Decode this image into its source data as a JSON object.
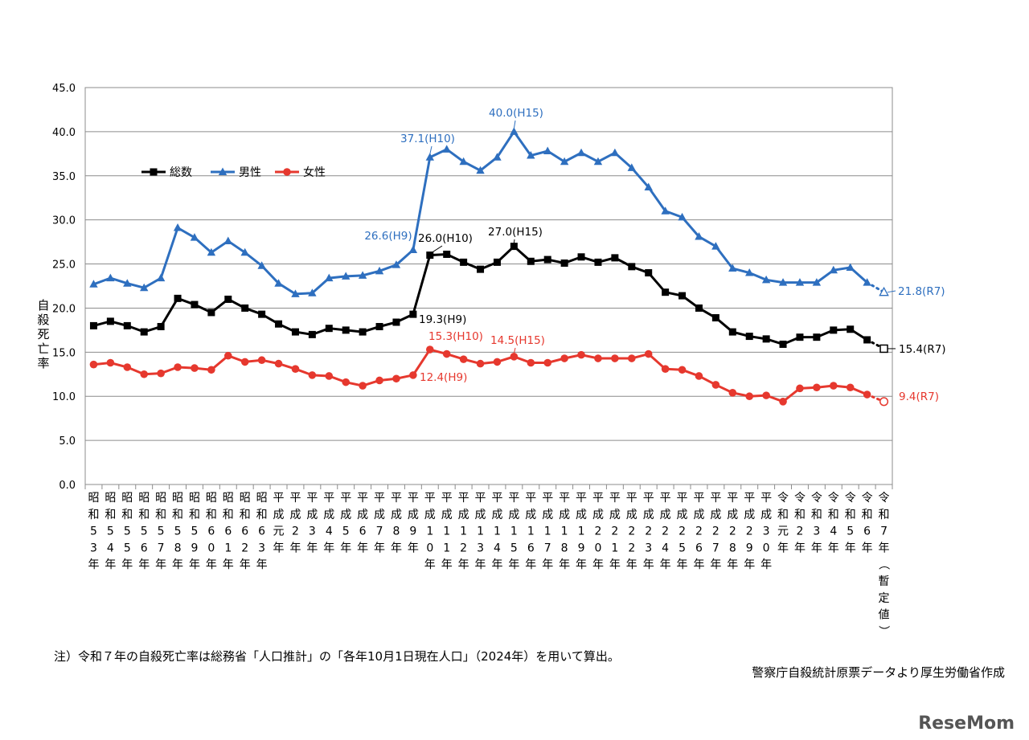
{
  "chart_data": {
    "type": "line",
    "ylabel": "自殺死亡率",
    "ylim": [
      0,
      45
    ],
    "yticks": [
      "0.0",
      "5.0",
      "10.0",
      "15.0",
      "20.0",
      "25.0",
      "30.0",
      "35.0",
      "40.0",
      "45.0"
    ],
    "grid": true,
    "legend_position": "top-left",
    "categories": [
      "昭和53年",
      "昭和54年",
      "昭和55年",
      "昭和56年",
      "昭和57年",
      "昭和58年",
      "昭和59年",
      "昭和60年",
      "昭和61年",
      "昭和62年",
      "昭和63年",
      "平成元年",
      "平成2年",
      "平成3年",
      "平成4年",
      "平成5年",
      "平成6年",
      "平成7年",
      "平成8年",
      "平成9年",
      "平成10年",
      "平成11年",
      "平成12年",
      "平成13年",
      "平成14年",
      "平成15年",
      "平成16年",
      "平成17年",
      "平成18年",
      "平成19年",
      "平成20年",
      "平成21年",
      "平成22年",
      "平成23年",
      "平成24年",
      "平成25年",
      "平成26年",
      "平成27年",
      "平成28年",
      "平成29年",
      "平成30年",
      "令和元年",
      "令和2年",
      "令和3年",
      "令和4年",
      "令和5年",
      "令和6年",
      "令和7年（暫定値）"
    ],
    "series": [
      {
        "name": "総数",
        "color": "#000000",
        "marker": "square",
        "values": [
          18.0,
          18.5,
          18.0,
          17.3,
          17.9,
          21.1,
          20.4,
          19.5,
          21.0,
          20.0,
          19.3,
          18.2,
          17.3,
          17.0,
          17.7,
          17.5,
          17.3,
          17.9,
          18.4,
          19.3,
          26.0,
          26.1,
          25.2,
          24.4,
          25.2,
          27.0,
          25.3,
          25.5,
          25.1,
          25.8,
          25.2,
          25.7,
          24.7,
          24.0,
          21.8,
          21.4,
          20.0,
          18.9,
          17.3,
          16.8,
          16.5,
          15.9,
          16.7,
          16.7,
          17.5,
          17.6,
          16.4,
          15.4
        ]
      },
      {
        "name": "男性",
        "color": "#2e6fbf",
        "marker": "triangle",
        "values": [
          22.7,
          23.4,
          22.8,
          22.3,
          23.4,
          29.1,
          28.0,
          26.3,
          27.6,
          26.3,
          24.8,
          22.8,
          21.6,
          21.7,
          23.4,
          23.6,
          23.7,
          24.2,
          24.9,
          26.6,
          37.1,
          38.0,
          36.6,
          35.6,
          37.1,
          40.0,
          37.3,
          37.8,
          36.6,
          37.6,
          36.6,
          37.6,
          35.9,
          33.7,
          31.0,
          30.3,
          28.1,
          27.0,
          24.5,
          24.0,
          23.2,
          22.9,
          22.9,
          22.9,
          24.3,
          24.6,
          22.9,
          21.8
        ]
      },
      {
        "name": "女性",
        "color": "#e6382e",
        "marker": "circle",
        "values": [
          13.6,
          13.8,
          13.3,
          12.5,
          12.6,
          13.3,
          13.2,
          13.0,
          14.6,
          13.9,
          14.1,
          13.7,
          13.1,
          12.4,
          12.3,
          11.6,
          11.2,
          11.8,
          12.0,
          12.4,
          15.3,
          14.8,
          14.2,
          13.7,
          13.9,
          14.5,
          13.8,
          13.8,
          14.3,
          14.7,
          14.3,
          14.3,
          14.3,
          14.8,
          13.1,
          13.0,
          12.3,
          11.3,
          10.4,
          10.0,
          10.1,
          9.4,
          10.9,
          11.0,
          11.2,
          11.0,
          10.2,
          9.4
        ]
      }
    ],
    "annotations": {
      "male_h9": "26.6(H9)",
      "male_h10": "37.1(H10)",
      "male_h15": "40.0(H15)",
      "male_r7": "21.8(R7)",
      "total_h9": "19.3(H9)",
      "total_h10": "26.0(H10)",
      "total_h15": "27.0(H15)",
      "total_r7": "15.4(R7)",
      "female_h9": "12.4(H9)",
      "female_h10": "15.3(H10)",
      "female_h15": "14.5(H15)",
      "female_r7": "9.4(R7)"
    }
  },
  "notes": {
    "left": "注）令和７年の自殺死亡率は総務省「人口推計」の「各年10月1日現在人口」（2024年）を用いて算出。",
    "right": "警察庁自殺統計原票データより厚生労働省作成"
  },
  "watermark": "ReseMom"
}
